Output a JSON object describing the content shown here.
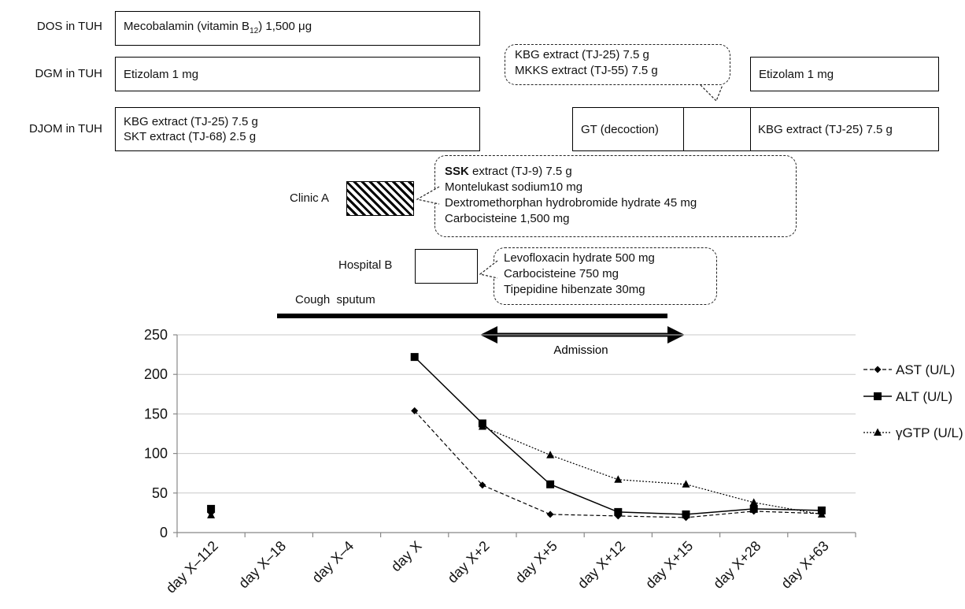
{
  "rows": {
    "dos_label": "DOS in TUH",
    "dgm_label": "DGM in TUH",
    "djom_label": "DJOM in TUH"
  },
  "boxes": {
    "dos_text_pre": "Mecobalamin (vitamin B",
    "dos_text_sub": "12",
    "dos_text_post": ") 1,500 μg",
    "dgm_text": "Etizolam 1 mg",
    "djom_line1": "KBG extract (TJ-25) 7.5 g",
    "djom_line2": "SKT extract (TJ-68) 2.5 g",
    "gt_text": "GT (decoction)",
    "djom_late_text": "KBG extract (TJ-25) 7.5 g",
    "dgm_late_text": "Etizolam 1 mg"
  },
  "callouts": {
    "kbg_mkks": [
      "KBG extract (TJ-25) 7.5 g",
      "MKKS extract (TJ-55) 7.5 g"
    ],
    "clinic_a_bold": "SSK",
    "clinic_a_first_rest": " extract (TJ-9) 7.5 g",
    "clinic_a": [
      "Montelukast sodium10 mg",
      "Dextromethorphan hydrobromide hydrate 45 mg",
      "Carbocisteine 1,500 mg"
    ],
    "hospital_b": [
      "Levofloxacin hydrate 500 mg",
      "Carbocisteine 750 mg",
      "Tipepidine hibenzate 30mg"
    ]
  },
  "labels": {
    "clinic_a": "Clinic A",
    "hospital_b": "Hospital B",
    "cough": "Cough  sputum",
    "admission": "Admission"
  },
  "chart_data": {
    "type": "line",
    "categories": [
      "day X–112",
      "day X–18",
      "day X–4",
      "day X",
      "day X+2",
      "day X+5",
      "day X+12",
      "day X+15",
      "day X+28",
      "day X+63"
    ],
    "ylim": [
      0,
      250
    ],
    "yticks": [
      0,
      50,
      100,
      150,
      200,
      250
    ],
    "grid": true,
    "legend_position": "right",
    "series": [
      {
        "name": "AST (U/L)",
        "marker": "diamond",
        "line": "dashed",
        "values": [
          25,
          null,
          null,
          154,
          60,
          23,
          21,
          19,
          27,
          24
        ]
      },
      {
        "name": "ALT (U/L)",
        "marker": "square",
        "line": "solid",
        "values": [
          30,
          null,
          null,
          222,
          138,
          61,
          26,
          23,
          30,
          28
        ]
      },
      {
        "name": "γGTP (U/L)",
        "marker": "triangle",
        "line": "dotted",
        "values": [
          22,
          null,
          null,
          null,
          134,
          98,
          67,
          61,
          38,
          23
        ]
      }
    ]
  }
}
